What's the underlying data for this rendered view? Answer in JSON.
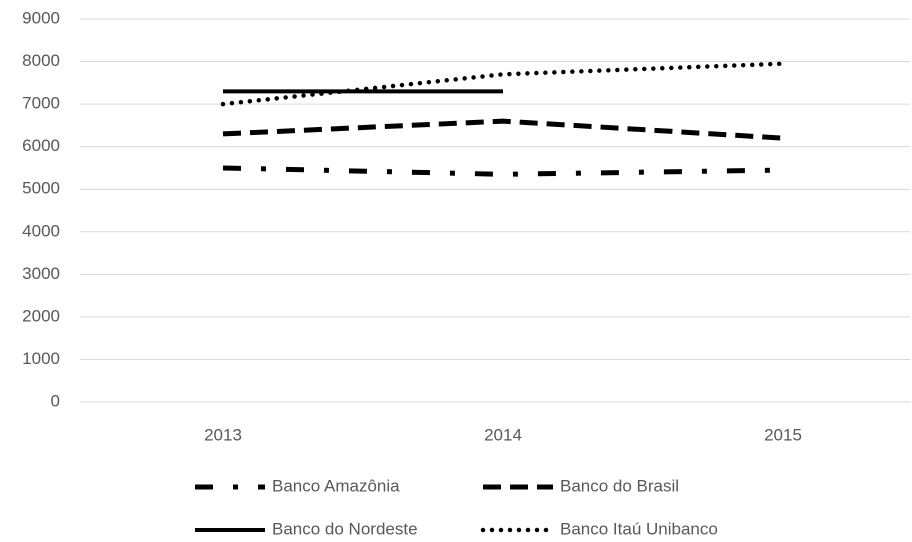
{
  "chart_data": {
    "type": "line",
    "categories": [
      "2013",
      "2014",
      "2015"
    ],
    "series": [
      {
        "name": "Banco Amazônia",
        "color": "#000000",
        "dash": "dash-dot",
        "values": [
          5500,
          5350,
          5450
        ]
      },
      {
        "name": "Banco do Brasil",
        "color": "#000000",
        "dash": "dash",
        "values": [
          6300,
          6600,
          6200
        ]
      },
      {
        "name": "Banco do Nordeste",
        "color": "#000000",
        "dash": "solid",
        "values": [
          7300,
          7300,
          null
        ]
      },
      {
        "name": "Banco Itaú Unibanco",
        "color": "#000000",
        "dash": "dot",
        "values": [
          7000,
          7700,
          7950
        ]
      }
    ],
    "ylim": [
      0,
      9000
    ],
    "yticks": [
      0,
      1000,
      2000,
      3000,
      4000,
      5000,
      6000,
      7000,
      8000,
      9000
    ],
    "grid": true,
    "legend": "bottom"
  }
}
